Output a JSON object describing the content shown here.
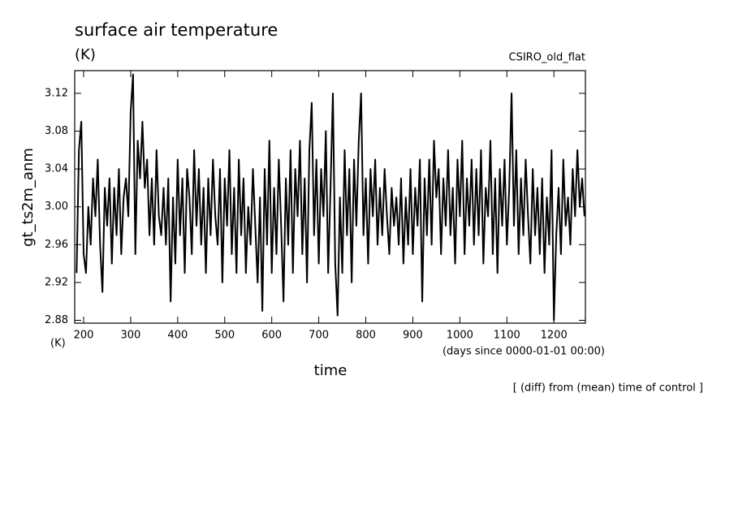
{
  "chart_data": {
    "type": "line",
    "title": "surface air temperature",
    "units": "(K)",
    "source": "CSIRO_old_flat",
    "y_label": "gt_ts2m_anm",
    "y_units": "(K)",
    "x_label": "time",
    "x_units": "(days since 0000-01-01 00:00)",
    "note": "[ (diff) from (mean) time of control ]",
    "color": "#000000",
    "xlim": [
      181,
      1267
    ],
    "ylim": [
      2.877,
      3.144
    ],
    "xticks": [
      200,
      300,
      400,
      500,
      600,
      700,
      800,
      900,
      1000,
      1100,
      1200
    ],
    "yticks": [
      2.88,
      2.92,
      2.96,
      {
        "value": 3,
        "label": "3.00"
      },
      3.04,
      3.08,
      3.12
    ],
    "x": [
      185,
      190,
      195,
      200,
      205,
      210,
      215,
      220,
      225,
      230,
      235,
      240,
      245,
      250,
      255,
      260,
      265,
      270,
      275,
      280,
      285,
      290,
      295,
      300,
      305,
      310,
      315,
      320,
      325,
      330,
      335,
      340,
      345,
      350,
      355,
      360,
      365,
      370,
      375,
      380,
      385,
      390,
      395,
      400,
      405,
      410,
      415,
      420,
      425,
      430,
      435,
      440,
      445,
      450,
      455,
      460,
      465,
      470,
      475,
      480,
      485,
      490,
      495,
      500,
      505,
      510,
      515,
      520,
      525,
      530,
      535,
      540,
      545,
      550,
      555,
      560,
      565,
      570,
      575,
      580,
      585,
      590,
      595,
      600,
      605,
      610,
      615,
      620,
      625,
      630,
      635,
      640,
      645,
      650,
      655,
      660,
      665,
      670,
      675,
      680,
      685,
      690,
      695,
      700,
      705,
      710,
      715,
      720,
      725,
      730,
      735,
      740,
      745,
      750,
      755,
      760,
      765,
      770,
      775,
      780,
      785,
      790,
      795,
      800,
      805,
      810,
      815,
      820,
      825,
      830,
      835,
      840,
      845,
      850,
      855,
      860,
      865,
      870,
      875,
      880,
      885,
      890,
      895,
      900,
      905,
      910,
      915,
      920,
      925,
      930,
      935,
      940,
      945,
      950,
      955,
      960,
      965,
      970,
      975,
      980,
      985,
      990,
      995,
      1000,
      1005,
      1010,
      1015,
      1020,
      1025,
      1030,
      1035,
      1040,
      1045,
      1050,
      1055,
      1060,
      1065,
      1070,
      1075,
      1080,
      1085,
      1090,
      1095,
      1100,
      1105,
      1110,
      1115,
      1120,
      1125,
      1130,
      1135,
      1140,
      1145,
      1150,
      1155,
      1160,
      1165,
      1170,
      1175,
      1180,
      1185,
      1190,
      1195,
      1200,
      1205,
      1210,
      1215,
      1220,
      1225,
      1230,
      1235,
      1240,
      1245,
      1250,
      1255,
      1260,
      1265
    ],
    "values": [
      2.93,
      3.06,
      3.09,
      2.95,
      2.93,
      3.0,
      2.96,
      3.03,
      2.99,
      3.05,
      2.96,
      2.91,
      3.02,
      2.98,
      3.03,
      2.94,
      3.02,
      2.97,
      3.04,
      2.95,
      3.01,
      3.03,
      2.99,
      3.1,
      3.14,
      2.95,
      3.07,
      3.03,
      3.09,
      3.02,
      3.05,
      2.97,
      3.03,
      2.96,
      3.06,
      2.99,
      2.97,
      3.02,
      2.96,
      3.03,
      2.9,
      3.01,
      2.94,
      3.05,
      2.97,
      3.03,
      2.93,
      3.04,
      3.01,
      2.95,
      3.06,
      2.98,
      3.04,
      2.96,
      3.02,
      2.93,
      3.03,
      2.97,
      3.05,
      2.99,
      2.96,
      3.04,
      2.92,
      3.03,
      2.98,
      3.06,
      2.95,
      3.02,
      2.93,
      3.05,
      2.97,
      3.03,
      2.93,
      3.0,
      2.96,
      3.04,
      2.98,
      2.92,
      3.01,
      2.89,
      3.04,
      2.96,
      3.07,
      2.93,
      3.02,
      2.95,
      3.05,
      2.98,
      2.9,
      3.03,
      2.96,
      3.06,
      2.93,
      3.04,
      2.99,
      3.07,
      2.95,
      3.03,
      2.92,
      3.06,
      3.11,
      2.97,
      3.05,
      2.94,
      3.04,
      2.99,
      3.08,
      2.93,
      3.02,
      3.12,
      2.94,
      2.885,
      3.01,
      2.93,
      3.06,
      2.97,
      3.04,
      2.92,
      3.05,
      2.98,
      3.07,
      3.12,
      2.97,
      3.03,
      2.94,
      3.04,
      2.99,
      3.05,
      2.96,
      3.02,
      2.97,
      3.04,
      2.99,
      2.95,
      3.02,
      2.98,
      3.01,
      2.96,
      3.03,
      2.94,
      3.01,
      2.96,
      3.04,
      2.95,
      3.02,
      2.98,
      3.05,
      2.9,
      3.03,
      2.97,
      3.05,
      2.96,
      3.07,
      3.01,
      3.04,
      2.95,
      3.03,
      2.98,
      3.06,
      2.97,
      3.02,
      2.94,
      3.05,
      2.99,
      3.07,
      2.95,
      3.03,
      2.98,
      3.05,
      2.96,
      3.04,
      2.97,
      3.06,
      2.94,
      3.02,
      2.99,
      3.07,
      2.95,
      3.03,
      2.93,
      3.04,
      2.98,
      3.05,
      2.96,
      3.02,
      3.12,
      2.98,
      3.06,
      2.95,
      3.03,
      2.97,
      3.05,
      2.99,
      2.94,
      3.04,
      2.97,
      3.02,
      2.95,
      3.03,
      2.93,
      3.01,
      2.96,
      3.06,
      2.88,
      2.97,
      3.02,
      2.95,
      3.05,
      2.98,
      3.01,
      2.96,
      3.04,
      2.99,
      3.06,
      3.0,
      3.03,
      2.99
    ]
  }
}
